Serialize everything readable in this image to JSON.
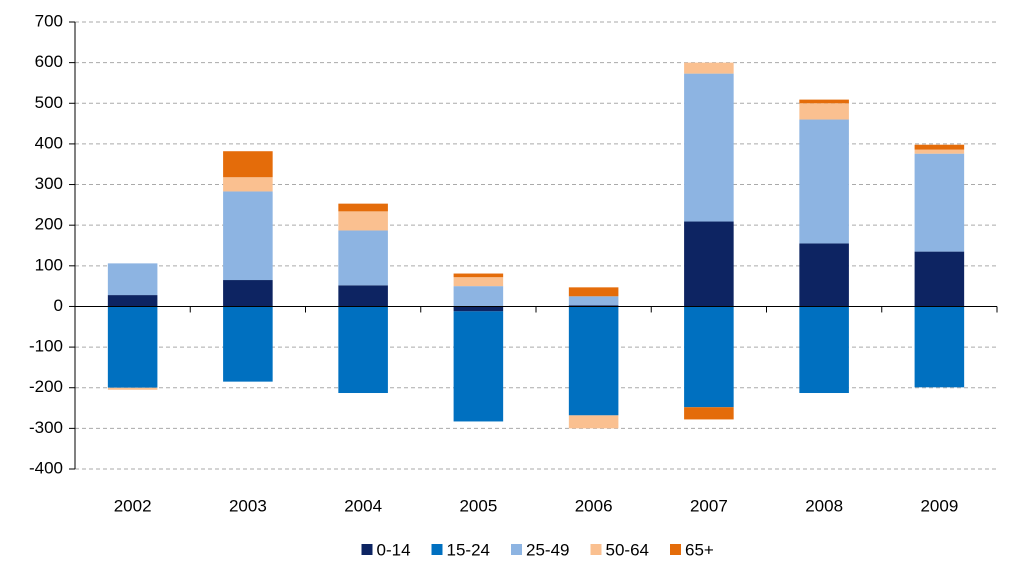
{
  "chart_data": {
    "type": "stacked-bar",
    "categories": [
      "2002",
      "2003",
      "2004",
      "2005",
      "2006",
      "2007",
      "2008",
      "2009"
    ],
    "series": [
      {
        "name": "0-14",
        "color": "#0d2462",
        "values": [
          28,
          65,
          52,
          -12,
          3,
          209,
          155,
          135
        ]
      },
      {
        "name": "15-24",
        "color": "#0070c0",
        "values": [
          -200,
          -185,
          -213,
          -271,
          -268,
          -248,
          -213,
          -199
        ]
      },
      {
        "name": "25-49",
        "color": "#8db4e2",
        "values": [
          78,
          218,
          135,
          50,
          22,
          364,
          305,
          241
        ]
      },
      {
        "name": "50-64",
        "color": "#fac090",
        "values": [
          -5,
          35,
          47,
          22,
          -32,
          27,
          40,
          10
        ]
      },
      {
        "name": "65+",
        "color": "#e46c0a",
        "values": [
          0,
          64,
          19,
          9,
          22,
          -30,
          9,
          12
        ]
      }
    ],
    "ylim": [
      -400,
      700
    ],
    "yticks": [
      -400,
      -300,
      -200,
      -100,
      0,
      100,
      200,
      300,
      400,
      500,
      600,
      700
    ],
    "grid": true,
    "legend": "bottom"
  }
}
